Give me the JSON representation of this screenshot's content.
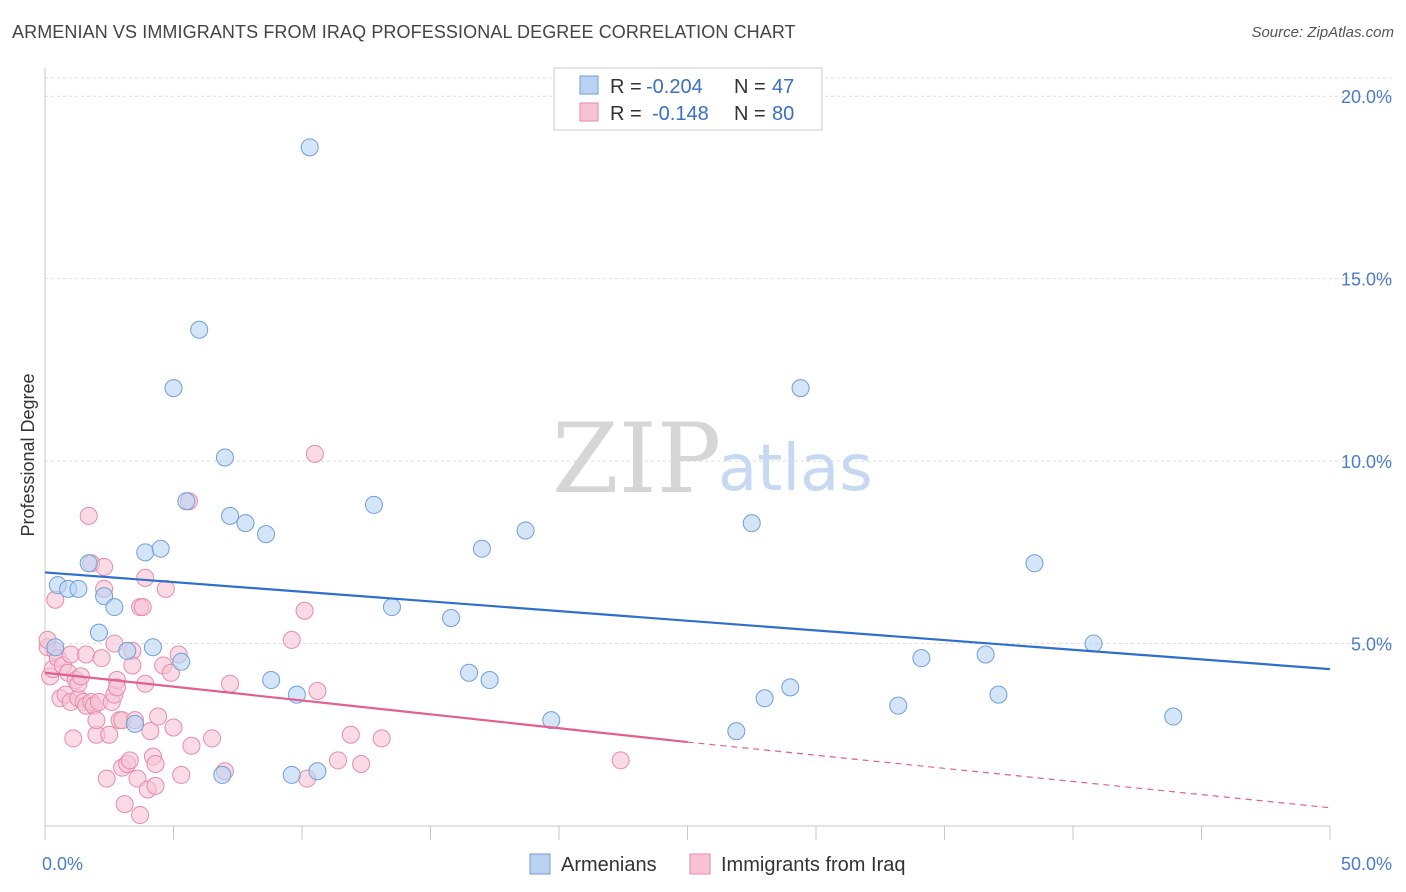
{
  "title": "ARMENIAN VS IMMIGRANTS FROM IRAQ PROFESSIONAL DEGREE CORRELATION CHART",
  "source": "Source: ZipAtlas.com",
  "watermark": {
    "zip": "ZIP",
    "atlas": "atlas"
  },
  "colors": {
    "armenians_fill": "#b8d3f2",
    "armenians_stroke": "#6f9fdb",
    "armenians_line": "#2f6fcb",
    "iraq_fill": "#f7c3d4",
    "iraq_stroke": "#e88aaa",
    "iraq_line": "#e06090",
    "grid": "#dddddd",
    "tick_label": "#4a7cc9"
  },
  "legend": {
    "rows": [
      {
        "r_label": "R = ",
        "r_value": "-0.204",
        "n_label": "N = ",
        "n_value": "47"
      },
      {
        "r_label": "R = ",
        "r_value": "-0.148",
        "n_label": "N = ",
        "n_value": "80"
      }
    ]
  },
  "chart_data": {
    "type": "scatter",
    "title": "ARMENIAN VS IMMIGRANTS FROM IRAQ PROFESSIONAL DEGREE CORRELATION CHART",
    "xlabel": "",
    "ylabel": "Professional Degree",
    "xlim": [
      0,
      50
    ],
    "ylim": [
      0,
      20.5
    ],
    "x_tick_labels": [
      "0.0%",
      "50.0%"
    ],
    "y_ticks": [
      5,
      10,
      15,
      20
    ],
    "y_tick_labels": [
      "5.0%",
      "10.0%",
      "15.0%",
      "20.0%"
    ],
    "grid": true,
    "legend_position": "top-center",
    "series": [
      {
        "name": "Armenians",
        "R": -0.204,
        "N": 47,
        "trend": {
          "x0": 0,
          "y0": 6.95,
          "x1": 50,
          "y1": 4.3
        },
        "points": [
          [
            0.4,
            4.9
          ],
          [
            0.5,
            6.6
          ],
          [
            0.9,
            6.5
          ],
          [
            1.3,
            6.5
          ],
          [
            1.7,
            7.2
          ],
          [
            2.1,
            5.3
          ],
          [
            2.3,
            6.3
          ],
          [
            2.7,
            6.0
          ],
          [
            3.2,
            4.8
          ],
          [
            3.5,
            2.8
          ],
          [
            3.9,
            7.5
          ],
          [
            4.2,
            4.9
          ],
          [
            4.5,
            7.6
          ],
          [
            5.0,
            12.0
          ],
          [
            5.3,
            4.5
          ],
          [
            5.5,
            8.9
          ],
          [
            6.0,
            13.6
          ],
          [
            6.9,
            1.4
          ],
          [
            7.0,
            10.1
          ],
          [
            7.2,
            8.5
          ],
          [
            7.8,
            8.3
          ],
          [
            8.6,
            8.0
          ],
          [
            8.8,
            4.0
          ],
          [
            9.6,
            1.4
          ],
          [
            9.8,
            3.6
          ],
          [
            10.3,
            18.6
          ],
          [
            10.6,
            1.5
          ],
          [
            12.8,
            8.8
          ],
          [
            13.5,
            6.0
          ],
          [
            15.8,
            5.7
          ],
          [
            16.5,
            4.2
          ],
          [
            17.0,
            7.6
          ],
          [
            17.3,
            4.0
          ],
          [
            18.7,
            8.1
          ],
          [
            19.7,
            2.9
          ],
          [
            26.9,
            2.6
          ],
          [
            27.5,
            8.3
          ],
          [
            28.0,
            3.5
          ],
          [
            29.0,
            3.8
          ],
          [
            29.4,
            12.0
          ],
          [
            33.2,
            3.3
          ],
          [
            34.1,
            4.6
          ],
          [
            36.6,
            4.7
          ],
          [
            37.1,
            3.6
          ],
          [
            38.5,
            7.2
          ],
          [
            40.8,
            5.0
          ],
          [
            43.9,
            3.0
          ]
        ]
      },
      {
        "name": "Immigrants from Iraq",
        "R": -0.148,
        "N": 80,
        "trend": {
          "x0": 0,
          "y0": 4.2,
          "x1": 25,
          "y1": 2.3,
          "dash_x1": 50,
          "dash_y1": 0.5
        },
        "points": [
          [
            0.1,
            4.9
          ],
          [
            0.1,
            5.1
          ],
          [
            0.2,
            4.1
          ],
          [
            0.3,
            4.3
          ],
          [
            0.4,
            6.2
          ],
          [
            0.4,
            4.8
          ],
          [
            0.5,
            4.6
          ],
          [
            0.6,
            3.5
          ],
          [
            0.7,
            4.4
          ],
          [
            0.8,
            3.6
          ],
          [
            0.9,
            4.2
          ],
          [
            1.0,
            3.4
          ],
          [
            1.0,
            4.7
          ],
          [
            1.1,
            2.4
          ],
          [
            1.2,
            4.0
          ],
          [
            1.3,
            3.5
          ],
          [
            1.3,
            3.9
          ],
          [
            1.4,
            4.1
          ],
          [
            1.5,
            3.4
          ],
          [
            1.6,
            3.3
          ],
          [
            1.6,
            4.7
          ],
          [
            1.7,
            8.5
          ],
          [
            1.8,
            3.4
          ],
          [
            1.8,
            7.2
          ],
          [
            1.9,
            3.3
          ],
          [
            2.0,
            2.5
          ],
          [
            2.0,
            2.9
          ],
          [
            2.1,
            3.4
          ],
          [
            2.2,
            4.6
          ],
          [
            2.3,
            7.1
          ],
          [
            2.3,
            6.5
          ],
          [
            2.4,
            1.3
          ],
          [
            2.5,
            2.5
          ],
          [
            2.6,
            3.4
          ],
          [
            2.7,
            3.6
          ],
          [
            2.7,
            5.0
          ],
          [
            2.8,
            4.0
          ],
          [
            2.8,
            3.8
          ],
          [
            2.9,
            2.9
          ],
          [
            3.0,
            2.9
          ],
          [
            3.0,
            1.6
          ],
          [
            3.1,
            0.6
          ],
          [
            3.2,
            1.7
          ],
          [
            3.3,
            1.8
          ],
          [
            3.4,
            4.8
          ],
          [
            3.4,
            4.4
          ],
          [
            3.5,
            2.9
          ],
          [
            3.6,
            1.3
          ],
          [
            3.7,
            0.3
          ],
          [
            3.7,
            6.0
          ],
          [
            3.8,
            6.0
          ],
          [
            3.9,
            6.8
          ],
          [
            3.9,
            3.9
          ],
          [
            4.0,
            1.0
          ],
          [
            4.1,
            2.6
          ],
          [
            4.2,
            1.9
          ],
          [
            4.3,
            1.1
          ],
          [
            4.3,
            1.7
          ],
          [
            4.4,
            3.0
          ],
          [
            4.6,
            4.4
          ],
          [
            4.7,
            6.5
          ],
          [
            4.9,
            4.2
          ],
          [
            5.0,
            2.7
          ],
          [
            5.2,
            4.7
          ],
          [
            5.3,
            1.4
          ],
          [
            5.6,
            8.9
          ],
          [
            5.7,
            2.2
          ],
          [
            6.5,
            2.4
          ],
          [
            7.0,
            1.5
          ],
          [
            7.2,
            3.9
          ],
          [
            9.6,
            5.1
          ],
          [
            10.1,
            5.9
          ],
          [
            10.2,
            1.3
          ],
          [
            10.5,
            10.2
          ],
          [
            10.6,
            3.7
          ],
          [
            11.4,
            1.8
          ],
          [
            11.9,
            2.5
          ],
          [
            12.3,
            1.7
          ],
          [
            13.1,
            2.4
          ],
          [
            22.4,
            1.8
          ]
        ]
      }
    ]
  }
}
